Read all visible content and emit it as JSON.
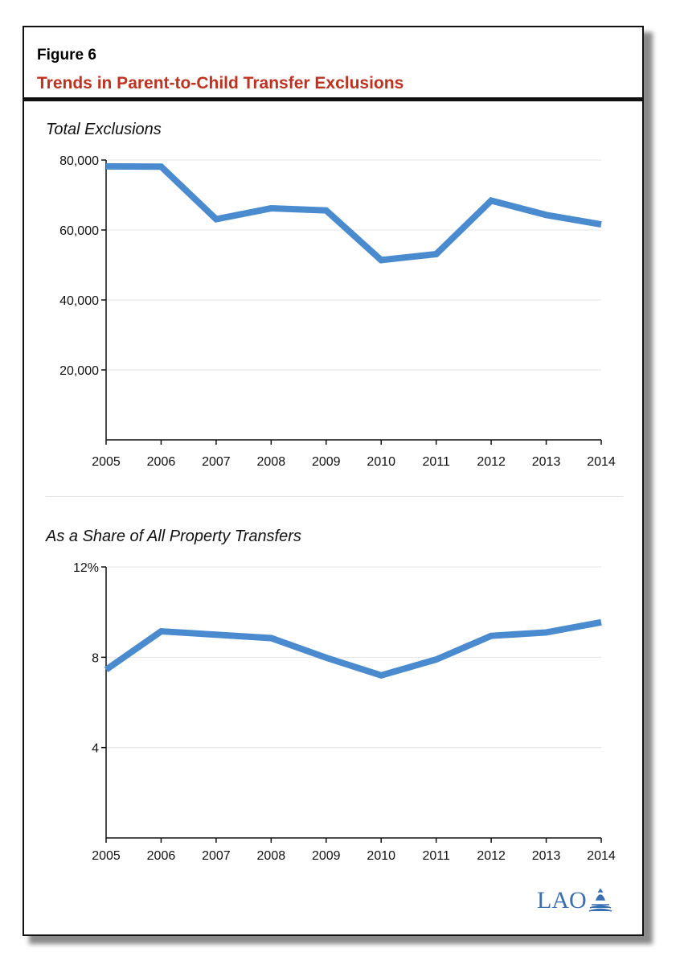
{
  "figure": {
    "label": "Figure 6",
    "title": "Trends in Parent-to-Child Transfer Exclusions",
    "accent_color": "#c0321f"
  },
  "logo": {
    "text": "LAO",
    "color": "#3a6fb5"
  },
  "chart_data": [
    {
      "type": "line",
      "title": "Total Exclusions",
      "xlabel": "",
      "ylabel": "",
      "x": [
        "2005",
        "2006",
        "2007",
        "2008",
        "2009",
        "2010",
        "2011",
        "2012",
        "2013",
        "2014"
      ],
      "series": [
        {
          "name": "Total Exclusions",
          "color": "#4a8bd0",
          "values": [
            78200,
            78100,
            63100,
            66200,
            65600,
            51400,
            53100,
            68400,
            64300,
            61600
          ]
        }
      ],
      "ylim": [
        0,
        80000
      ],
      "yticks": [
        20000,
        40000,
        60000,
        80000
      ],
      "ytick_labels": [
        "20,000",
        "40,000",
        "60,000",
        "80,000"
      ],
      "grid": true
    },
    {
      "type": "line",
      "title": "As a Share of All Property Transfers",
      "xlabel": "",
      "ylabel": "",
      "x": [
        "2005",
        "2006",
        "2007",
        "2008",
        "2009",
        "2010",
        "2011",
        "2012",
        "2013",
        "2014"
      ],
      "series": [
        {
          "name": "Share of All Property Transfers (%)",
          "color": "#4a8bd0",
          "values": [
            7.45,
            9.15,
            9.0,
            8.85,
            7.98,
            7.2,
            7.9,
            8.95,
            9.1,
            9.55
          ]
        }
      ],
      "ylim": [
        0,
        12
      ],
      "yticks": [
        4,
        8,
        12
      ],
      "ytick_labels": [
        "4",
        "8",
        "12%"
      ],
      "grid": true
    }
  ]
}
